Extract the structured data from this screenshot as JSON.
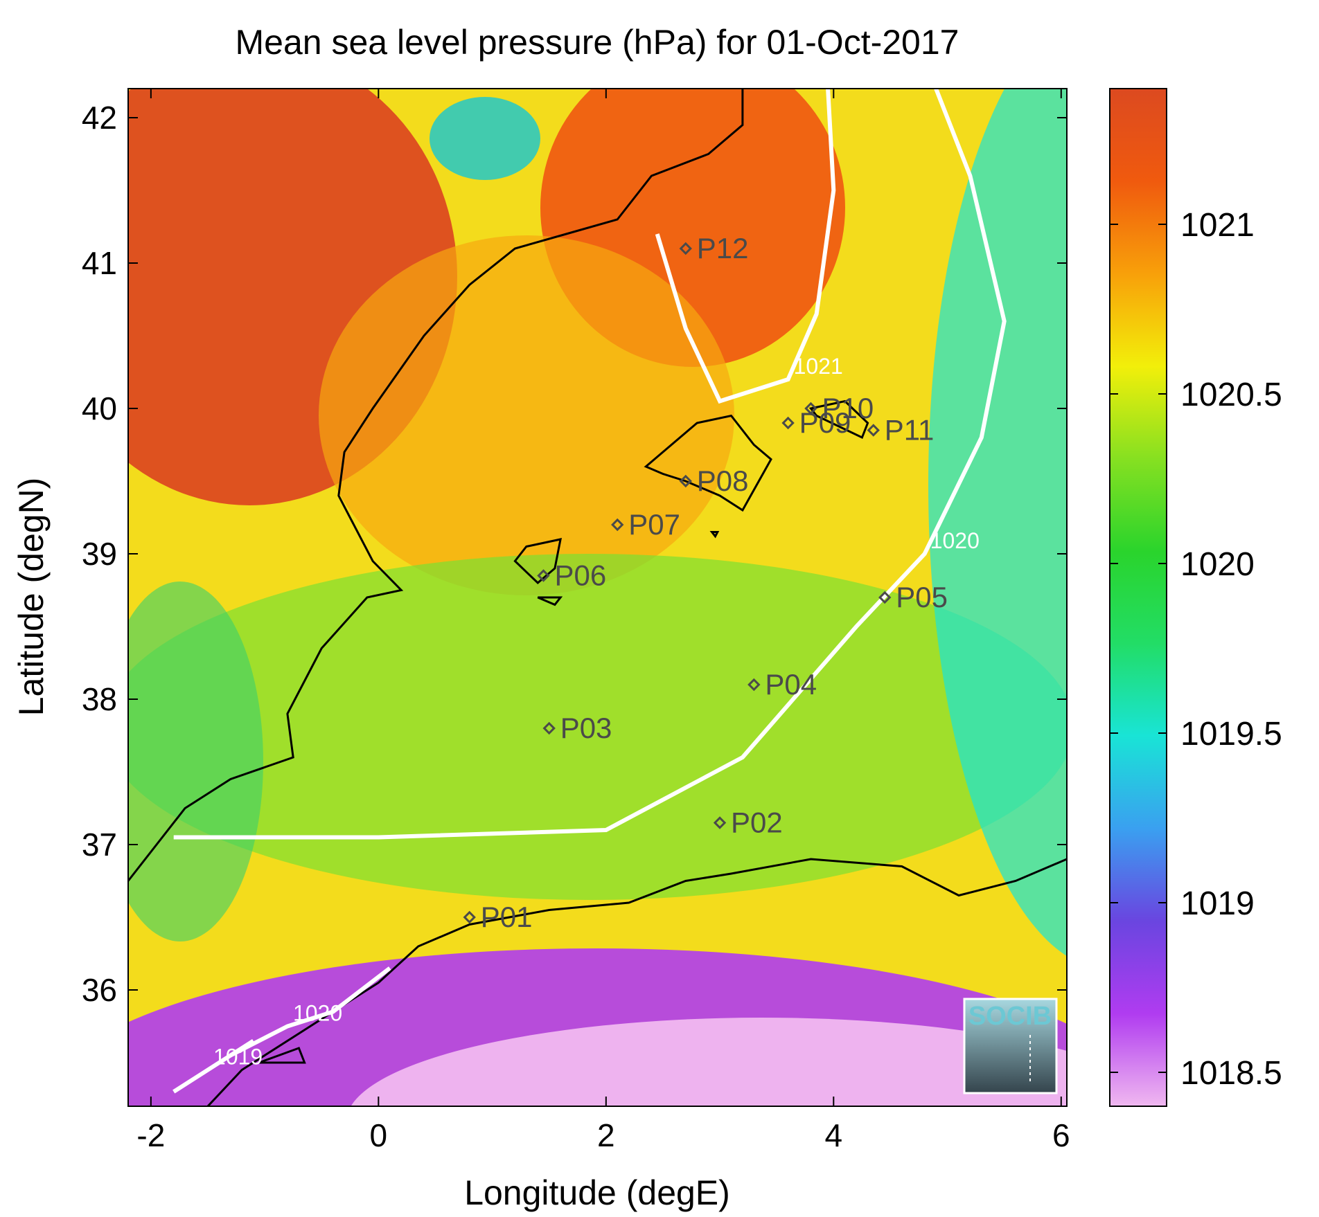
{
  "title": "Mean sea level pressure (hPa) for 01-Oct-2017",
  "axes": {
    "xlabel": "Longitude (degE)",
    "ylabel": "Latitude (degN)",
    "xlim": [
      -2.2,
      6.05
    ],
    "ylim": [
      35.2,
      42.2
    ],
    "xticks": [
      -2,
      0,
      2,
      4,
      6
    ],
    "yticks": [
      36,
      37,
      38,
      39,
      40,
      41,
      42
    ]
  },
  "colorbar": {
    "range": [
      1018.4,
      1021.4
    ],
    "ticks": [
      1018.5,
      1019,
      1019.5,
      1020,
      1020.5,
      1021
    ],
    "colormap": [
      "#f0b8f0",
      "#b03cf0",
      "#6a45e0",
      "#3aa0f0",
      "#19e4d6",
      "#22dd66",
      "#2ad42c",
      "#86e021",
      "#f2ef0a",
      "#f8a00a",
      "#f05a0e",
      "#dc4a20"
    ]
  },
  "contours": [
    {
      "label": "1021",
      "points": [
        [
          2.45,
          41.2
        ],
        [
          2.7,
          40.55
        ],
        [
          3.0,
          40.05
        ],
        [
          3.6,
          40.2
        ],
        [
          3.85,
          40.65
        ],
        [
          4.0,
          41.5
        ],
        [
          3.95,
          42.2
        ]
      ]
    },
    {
      "label": "1020",
      "points": [
        [
          -1.8,
          37.05
        ],
        [
          0.0,
          37.05
        ],
        [
          2.0,
          37.1
        ],
        [
          3.2,
          37.6
        ],
        [
          4.2,
          38.5
        ],
        [
          4.8,
          39.0
        ],
        [
          5.3,
          39.8
        ],
        [
          5.5,
          40.6
        ],
        [
          5.2,
          41.6
        ],
        [
          4.9,
          42.2
        ]
      ]
    },
    {
      "label": "1020",
      "points": [
        [
          0.1,
          36.15
        ],
        [
          -0.4,
          35.85
        ],
        [
          -0.8,
          35.75
        ],
        [
          -1.3,
          35.55
        ]
      ]
    },
    {
      "label": "1019",
      "points": [
        [
          -1.8,
          35.3
        ],
        [
          -1.5,
          35.45
        ],
        [
          -1.1,
          35.65
        ]
      ]
    }
  ],
  "stations": [
    {
      "name": "P01",
      "lon": 0.8,
      "lat": 36.5
    },
    {
      "name": "P02",
      "lon": 3.0,
      "lat": 37.15
    },
    {
      "name": "P03",
      "lon": 1.5,
      "lat": 37.8
    },
    {
      "name": "P04",
      "lon": 3.3,
      "lat": 38.1
    },
    {
      "name": "P05",
      "lon": 4.45,
      "lat": 38.7
    },
    {
      "name": "P06",
      "lon": 1.45,
      "lat": 38.85
    },
    {
      "name": "P07",
      "lon": 2.1,
      "lat": 39.2
    },
    {
      "name": "P08",
      "lon": 2.7,
      "lat": 39.5
    },
    {
      "name": "P09",
      "lon": 3.6,
      "lat": 39.9
    },
    {
      "name": "P10",
      "lon": 3.8,
      "lat": 40.0
    },
    {
      "name": "P11",
      "lon": 4.35,
      "lat": 39.85
    },
    {
      "name": "P12",
      "lon": 2.7,
      "lat": 41.1
    }
  ],
  "coastlines": {
    "iberia": [
      [
        -2.2,
        36.75
      ],
      [
        -1.7,
        37.25
      ],
      [
        -1.3,
        37.45
      ],
      [
        -0.75,
        37.6
      ],
      [
        -0.8,
        37.9
      ],
      [
        -0.6,
        38.2
      ],
      [
        -0.5,
        38.35
      ],
      [
        -0.1,
        38.7
      ],
      [
        0.2,
        38.75
      ],
      [
        -0.05,
        38.95
      ],
      [
        -0.35,
        39.4
      ],
      [
        -0.3,
        39.7
      ],
      [
        -0.05,
        40.0
      ],
      [
        0.4,
        40.5
      ],
      [
        0.8,
        40.85
      ],
      [
        1.2,
        41.1
      ],
      [
        1.65,
        41.2
      ],
      [
        2.1,
        41.3
      ],
      [
        2.4,
        41.6
      ],
      [
        2.9,
        41.75
      ],
      [
        3.2,
        41.95
      ],
      [
        3.2,
        42.2
      ]
    ],
    "africa": [
      [
        -1.5,
        35.2
      ],
      [
        -1.2,
        35.45
      ],
      [
        -0.7,
        35.7
      ],
      [
        -0.4,
        35.85
      ],
      [
        0.0,
        36.05
      ],
      [
        0.35,
        36.3
      ],
      [
        0.8,
        36.45
      ],
      [
        1.5,
        36.55
      ],
      [
        2.2,
        36.6
      ],
      [
        2.7,
        36.75
      ],
      [
        3.1,
        36.8
      ],
      [
        3.8,
        36.9
      ],
      [
        4.6,
        36.85
      ],
      [
        5.1,
        36.65
      ],
      [
        5.6,
        36.75
      ],
      [
        6.05,
        36.9
      ]
    ],
    "mallorca": [
      [
        2.35,
        39.6
      ],
      [
        2.5,
        39.7
      ],
      [
        2.8,
        39.9
      ],
      [
        3.1,
        39.95
      ],
      [
        3.3,
        39.75
      ],
      [
        3.45,
        39.65
      ],
      [
        3.2,
        39.3
      ],
      [
        3.0,
        39.4
      ],
      [
        2.7,
        39.5
      ],
      [
        2.5,
        39.55
      ],
      [
        2.35,
        39.6
      ]
    ],
    "menorca": [
      [
        3.8,
        40.0
      ],
      [
        4.1,
        40.05
      ],
      [
        4.3,
        39.9
      ],
      [
        4.25,
        39.8
      ],
      [
        3.85,
        39.95
      ],
      [
        3.8,
        40.0
      ]
    ],
    "ibiza": [
      [
        1.2,
        38.95
      ],
      [
        1.3,
        39.05
      ],
      [
        1.6,
        39.1
      ],
      [
        1.55,
        38.9
      ],
      [
        1.4,
        38.8
      ],
      [
        1.2,
        38.95
      ]
    ],
    "formentera": [
      [
        1.4,
        38.7
      ],
      [
        1.6,
        38.7
      ],
      [
        1.55,
        38.65
      ],
      [
        1.4,
        38.7
      ]
    ],
    "cabrera": [
      [
        2.93,
        39.15
      ],
      [
        2.98,
        39.15
      ],
      [
        2.96,
        39.12
      ],
      [
        2.93,
        39.15
      ]
    ],
    "alboran": [
      [
        -1.05,
        35.5
      ],
      [
        -0.7,
        35.6
      ],
      [
        -0.65,
        35.5
      ],
      [
        -1.05,
        35.5
      ]
    ]
  },
  "logo": {
    "text": "SOCIB"
  }
}
